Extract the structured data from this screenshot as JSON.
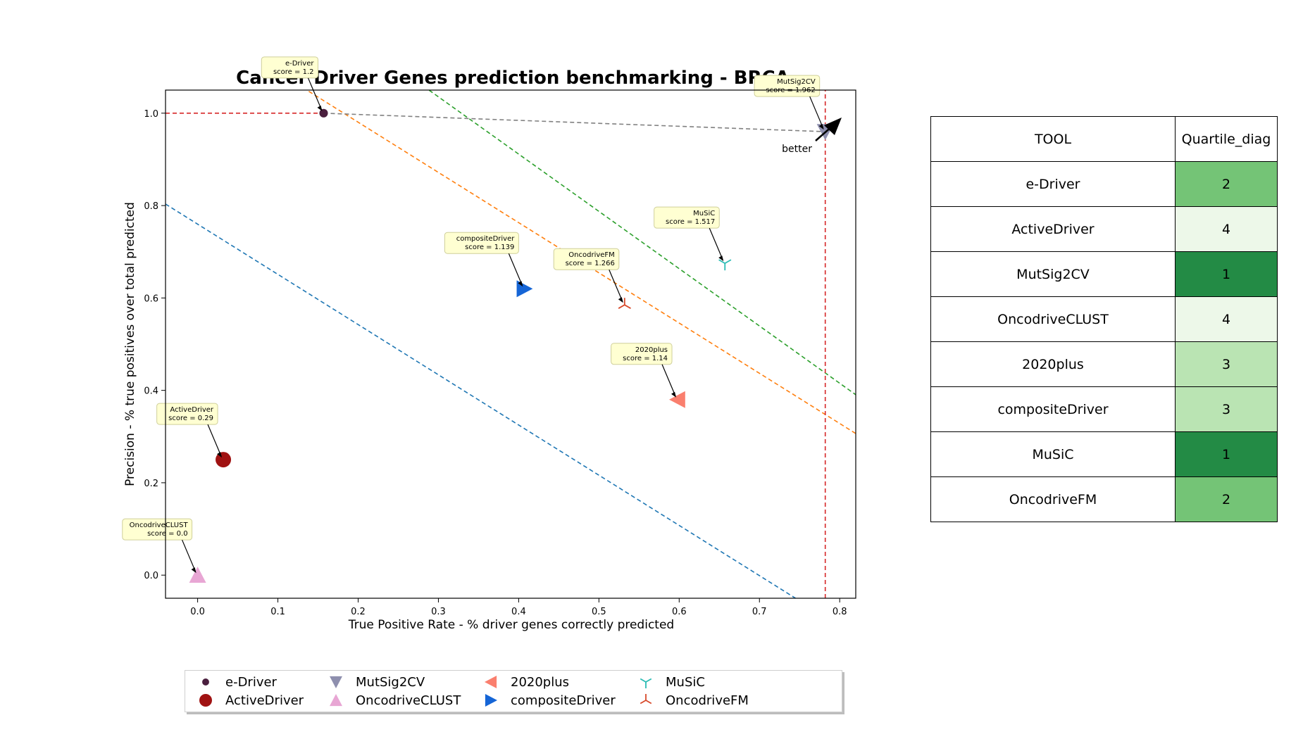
{
  "chart_data": {
    "type": "scatter",
    "title": "Cancer Driver Genes prediction benchmarking - BRCA",
    "xlabel": "True Positive Rate - % driver genes correctly predicted",
    "ylabel": "Precision - % true positives over total predicted",
    "xlim": [
      -0.04,
      0.82
    ],
    "ylim": [
      -0.05,
      1.05
    ],
    "x_ticks": [
      "0.0",
      "0.1",
      "0.2",
      "0.3",
      "0.4",
      "0.5",
      "0.6",
      "0.7",
      "0.8"
    ],
    "y_ticks": [
      "0.0",
      "0.2",
      "0.4",
      "0.6",
      "0.8",
      "1.0"
    ],
    "grid": false,
    "legend_position": "bottom-center",
    "series": [
      {
        "name": "e-Driver",
        "x": 0.157,
        "y": 1.0,
        "marker": "circle-small",
        "color": "#4a1f3e",
        "label": "e-Driver\nscore = 1.2"
      },
      {
        "name": "ActiveDriver",
        "x": 0.032,
        "y": 0.25,
        "marker": "circle",
        "color": "#a01212",
        "label": "ActiveDriver\nscore = 0.29"
      },
      {
        "name": "MutSig2CV",
        "x": 0.782,
        "y": 0.96,
        "marker": "triangle-down",
        "color": "#8e8fae",
        "label": "MutSig2CV\nscore = 1.962"
      },
      {
        "name": "OncodriveCLUST",
        "x": 0.0,
        "y": 0.0,
        "marker": "triangle-up",
        "color": "#e8a6d4",
        "label": "OncodriveCLUST\nscore = 0.0"
      },
      {
        "name": "2020plus",
        "x": 0.598,
        "y": 0.38,
        "marker": "triangle-left",
        "color": "#fa7f6e",
        "label": "2020plus\nscore = 1.14"
      },
      {
        "name": "compositeDriver",
        "x": 0.407,
        "y": 0.62,
        "marker": "triangle-right",
        "color": "#1565d6",
        "label": "compositeDriver\nscore = 1.139"
      },
      {
        "name": "MuSiC",
        "x": 0.657,
        "y": 0.675,
        "marker": "tri-down",
        "color": "#2bbcb4",
        "label": "MuSiC\nscore = 1.517"
      },
      {
        "name": "OncodriveFM",
        "x": 0.532,
        "y": 0.585,
        "marker": "tri-up",
        "color": "#d7492a",
        "label": "OncodriveFM\nscore = 1.266"
      }
    ],
    "reference_lines": [
      {
        "type": "diagonal",
        "x_intercept": 0.699,
        "slope": -1.087,
        "color": "#1f77b4"
      },
      {
        "type": "diagonal",
        "x_intercept": 1.102,
        "slope": -1.087,
        "color": "#ff7f0e"
      },
      {
        "type": "diagonal",
        "x_intercept": 1.135,
        "slope": -1.24,
        "color": "#2ca02c"
      },
      {
        "type": "vertical",
        "x": 0.782,
        "color": "#d62728"
      },
      {
        "type": "horizontal",
        "y": 1.0,
        "x_end": 0.157,
        "color": "#d62728"
      },
      {
        "type": "segment",
        "x1": 0.157,
        "y1": 1.0,
        "x2": 0.782,
        "y2": 0.96,
        "color": "#808080"
      }
    ],
    "better_label": "better"
  },
  "table": {
    "headers": [
      "TOOL",
      "Quartile_diag"
    ],
    "rows": [
      {
        "tool": "e-Driver",
        "quartile": "2",
        "color": "#74c476"
      },
      {
        "tool": "ActiveDriver",
        "quartile": "4",
        "color": "#edf8e9"
      },
      {
        "tool": "MutSig2CV",
        "quartile": "1",
        "color": "#238b45"
      },
      {
        "tool": "OncodriveCLUST",
        "quartile": "4",
        "color": "#edf8e9"
      },
      {
        "tool": "2020plus",
        "quartile": "3",
        "color": "#bae4b3"
      },
      {
        "tool": "compositeDriver",
        "quartile": "3",
        "color": "#bae4b3"
      },
      {
        "tool": "MuSiC",
        "quartile": "1",
        "color": "#238b45"
      },
      {
        "tool": "OncodriveFM",
        "quartile": "2",
        "color": "#74c476"
      }
    ]
  }
}
